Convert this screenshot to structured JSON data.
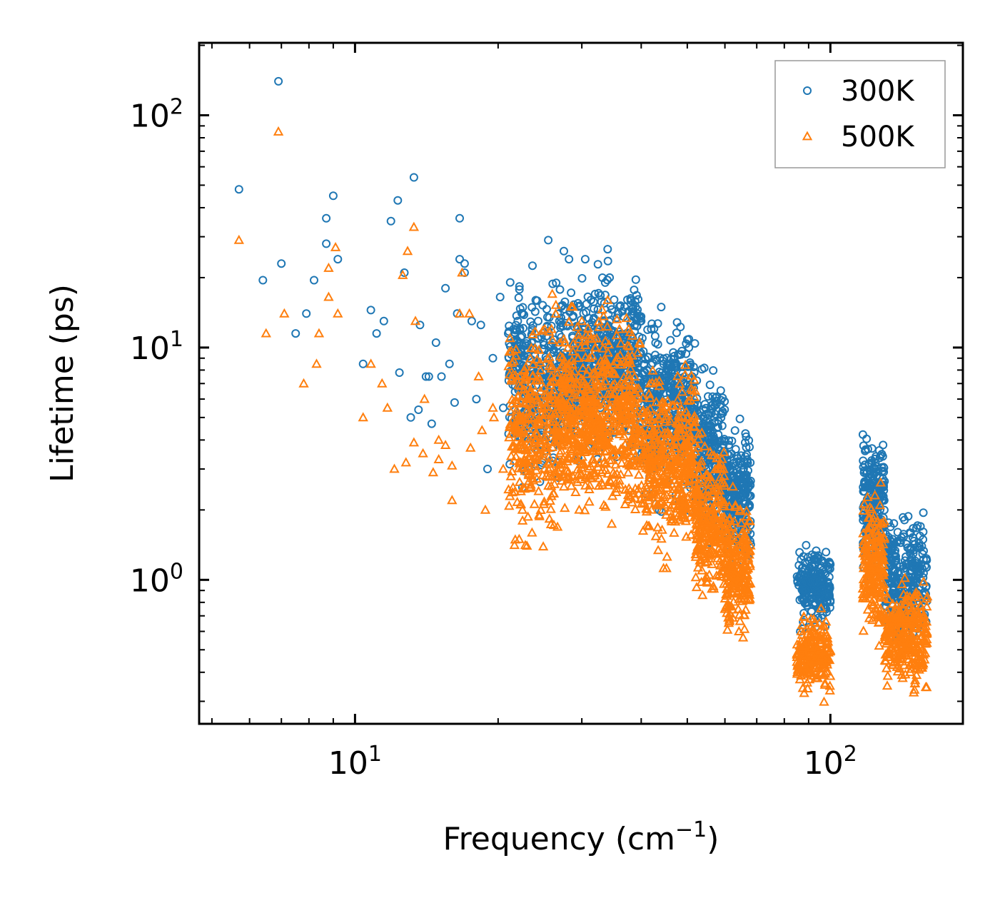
{
  "chart_data": {
    "type": "scatter",
    "x_scale": "log",
    "y_scale": "log",
    "xlabel": {
      "base": "Frequency (cm",
      "sup": "−1",
      "tail": ")"
    },
    "ylabel": "Lifetime (ps)",
    "xlim": [
      4.7,
      190
    ],
    "ylim": [
      0.24,
      205
    ],
    "x_tick_labels": [
      {
        "value": 10,
        "base": "10",
        "exp": "1"
      },
      {
        "value": 100,
        "base": "10",
        "exp": "2"
      }
    ],
    "y_tick_labels": [
      {
        "value": 1,
        "base": "10",
        "exp": "0"
      },
      {
        "value": 10,
        "base": "10",
        "exp": "1"
      },
      {
        "value": 100,
        "base": "10",
        "exp": "2"
      }
    ],
    "legend_position": "top-right",
    "series": [
      {
        "name": "300K",
        "marker": "circle",
        "color": "#1f77b4",
        "points": [
          [
            5.7,
            48
          ],
          [
            6.9,
            140
          ],
          [
            6.4,
            19.5
          ],
          [
            7.0,
            23
          ],
          [
            8.2,
            19.5
          ],
          [
            8.7,
            36
          ],
          [
            9.0,
            45
          ],
          [
            9.2,
            24
          ],
          [
            8.7,
            28
          ],
          [
            7.9,
            14
          ],
          [
            7.5,
            11.5
          ],
          [
            10.4,
            8.5
          ],
          [
            10.8,
            14.5
          ],
          [
            11.1,
            11.5
          ],
          [
            11.5,
            13
          ],
          [
            11.9,
            35
          ],
          [
            12.3,
            43
          ],
          [
            12.7,
            21
          ],
          [
            13.3,
            54
          ],
          [
            13.7,
            12.5
          ],
          [
            14.1,
            7.5
          ],
          [
            14.8,
            10.5
          ],
          [
            15.5,
            18
          ],
          [
            16.2,
            5.8
          ],
          [
            16.6,
            36
          ],
          [
            17.0,
            23
          ],
          [
            17.6,
            13
          ],
          [
            18.4,
            12.5
          ],
          [
            19.5,
            9
          ],
          [
            20.2,
            16.5
          ],
          [
            21.0,
            11.5
          ],
          [
            16.6,
            24
          ],
          [
            17.0,
            21
          ],
          [
            15.2,
            7.5
          ],
          [
            15.8,
            8.5
          ],
          [
            16.4,
            14
          ],
          [
            14.5,
            4.7
          ],
          [
            13.1,
            5
          ],
          [
            12.4,
            7.8
          ],
          [
            13.6,
            5.4
          ],
          [
            14.3,
            7.5
          ],
          [
            22.0,
            13
          ],
          [
            24.0,
            16
          ],
          [
            24.5,
            3.5
          ],
          [
            25.5,
            29
          ],
          [
            26.5,
            19
          ],
          [
            27.5,
            26
          ],
          [
            28.2,
            24
          ],
          [
            29.5,
            15
          ],
          [
            30.5,
            24
          ],
          [
            32.0,
            17
          ],
          [
            34.0,
            26.5
          ],
          [
            36.0,
            15
          ],
          [
            38.0,
            16
          ],
          [
            40.0,
            13
          ],
          [
            42.0,
            12
          ],
          [
            21.5,
            4.3
          ],
          [
            22.5,
            2.5
          ],
          [
            23.5,
            6
          ],
          [
            20.5,
            5.5
          ],
          [
            19.0,
            3
          ],
          [
            18.0,
            6
          ]
        ],
        "clusters": [
          {
            "x_range": [
              21,
              27
            ],
            "y_center": 7.0,
            "y_spread": 0.55,
            "n": 340
          },
          {
            "x_range": [
              27,
              40
            ],
            "y_center": 8.5,
            "y_spread": 0.45,
            "n": 650
          },
          {
            "x_range": [
              40,
              52
            ],
            "y_center": 5.5,
            "y_spread": 0.45,
            "n": 420
          },
          {
            "x_range": [
              52,
              60
            ],
            "y_center": 3.3,
            "y_spread": 0.4,
            "n": 280
          },
          {
            "x_range": [
              60,
              68
            ],
            "y_center": 2.3,
            "y_spread": 0.35,
            "n": 230
          },
          {
            "x_range": [
              85,
              100
            ],
            "y_center": 0.95,
            "y_spread": 0.2,
            "n": 220
          },
          {
            "x_range": [
              117,
              130
            ],
            "y_center": 2.2,
            "y_spread": 0.35,
            "n": 220
          },
          {
            "x_range": [
              130,
              160
            ],
            "y_center": 1.05,
            "y_spread": 0.3,
            "n": 300
          }
        ]
      },
      {
        "name": "500K",
        "marker": "triangle",
        "color": "#ff7f0e",
        "points": [
          [
            5.7,
            29
          ],
          [
            6.9,
            85
          ],
          [
            6.5,
            11.5
          ],
          [
            7.1,
            14
          ],
          [
            7.8,
            7
          ],
          [
            8.3,
            8.5
          ],
          [
            8.4,
            11.5
          ],
          [
            8.8,
            16.5
          ],
          [
            8.8,
            22
          ],
          [
            9.2,
            14
          ],
          [
            9.1,
            27
          ],
          [
            10.4,
            5
          ],
          [
            10.8,
            8.5
          ],
          [
            11.4,
            7
          ],
          [
            11.7,
            5.5
          ],
          [
            12.6,
            20.5
          ],
          [
            12.9,
            26
          ],
          [
            13.3,
            33
          ],
          [
            13.4,
            13
          ],
          [
            14.0,
            6
          ],
          [
            14.6,
            2.9
          ],
          [
            15.0,
            3.3
          ],
          [
            15.5,
            3.8
          ],
          [
            16.0,
            2.2
          ],
          [
            16.6,
            14
          ],
          [
            16.8,
            21
          ],
          [
            17.4,
            14
          ],
          [
            18.2,
            7.5
          ],
          [
            18.8,
            2
          ],
          [
            19.6,
            5
          ],
          [
            12.1,
            3
          ],
          [
            12.8,
            3.2
          ],
          [
            13.3,
            3.9
          ],
          [
            13.9,
            3.5
          ],
          [
            15.0,
            4
          ],
          [
            16.0,
            3.1
          ],
          [
            20.5,
            3
          ],
          [
            21.5,
            2.5
          ],
          [
            22.5,
            2
          ],
          [
            23.0,
            1.4
          ],
          [
            24.5,
            3.5
          ],
          [
            26.0,
            17
          ],
          [
            27.0,
            10.5
          ],
          [
            28.5,
            15
          ],
          [
            30.0,
            13
          ],
          [
            32.0,
            10
          ],
          [
            34.0,
            16
          ],
          [
            36.0,
            12
          ],
          [
            17.5,
            3.7
          ],
          [
            18.5,
            4.4
          ],
          [
            19.5,
            5.5
          ]
        ],
        "clusters": [
          {
            "x_range": [
              21,
              27
            ],
            "y_center": 4.2,
            "y_spread": 0.6,
            "n": 320
          },
          {
            "x_range": [
              27,
              40
            ],
            "y_center": 5.0,
            "y_spread": 0.5,
            "n": 650
          },
          {
            "x_range": [
              40,
              52
            ],
            "y_center": 3.2,
            "y_spread": 0.45,
            "n": 420
          },
          {
            "x_range": [
              52,
              60
            ],
            "y_center": 1.8,
            "y_spread": 0.4,
            "n": 260
          },
          {
            "x_range": [
              60,
              68
            ],
            "y_center": 1.1,
            "y_spread": 0.35,
            "n": 230
          },
          {
            "x_range": [
              85,
              100
            ],
            "y_center": 0.47,
            "y_spread": 0.2,
            "n": 200
          },
          {
            "x_range": [
              117,
              130
            ],
            "y_center": 1.15,
            "y_spread": 0.35,
            "n": 200
          },
          {
            "x_range": [
              130,
              160
            ],
            "y_center": 0.58,
            "y_spread": 0.3,
            "n": 300
          }
        ]
      }
    ]
  }
}
